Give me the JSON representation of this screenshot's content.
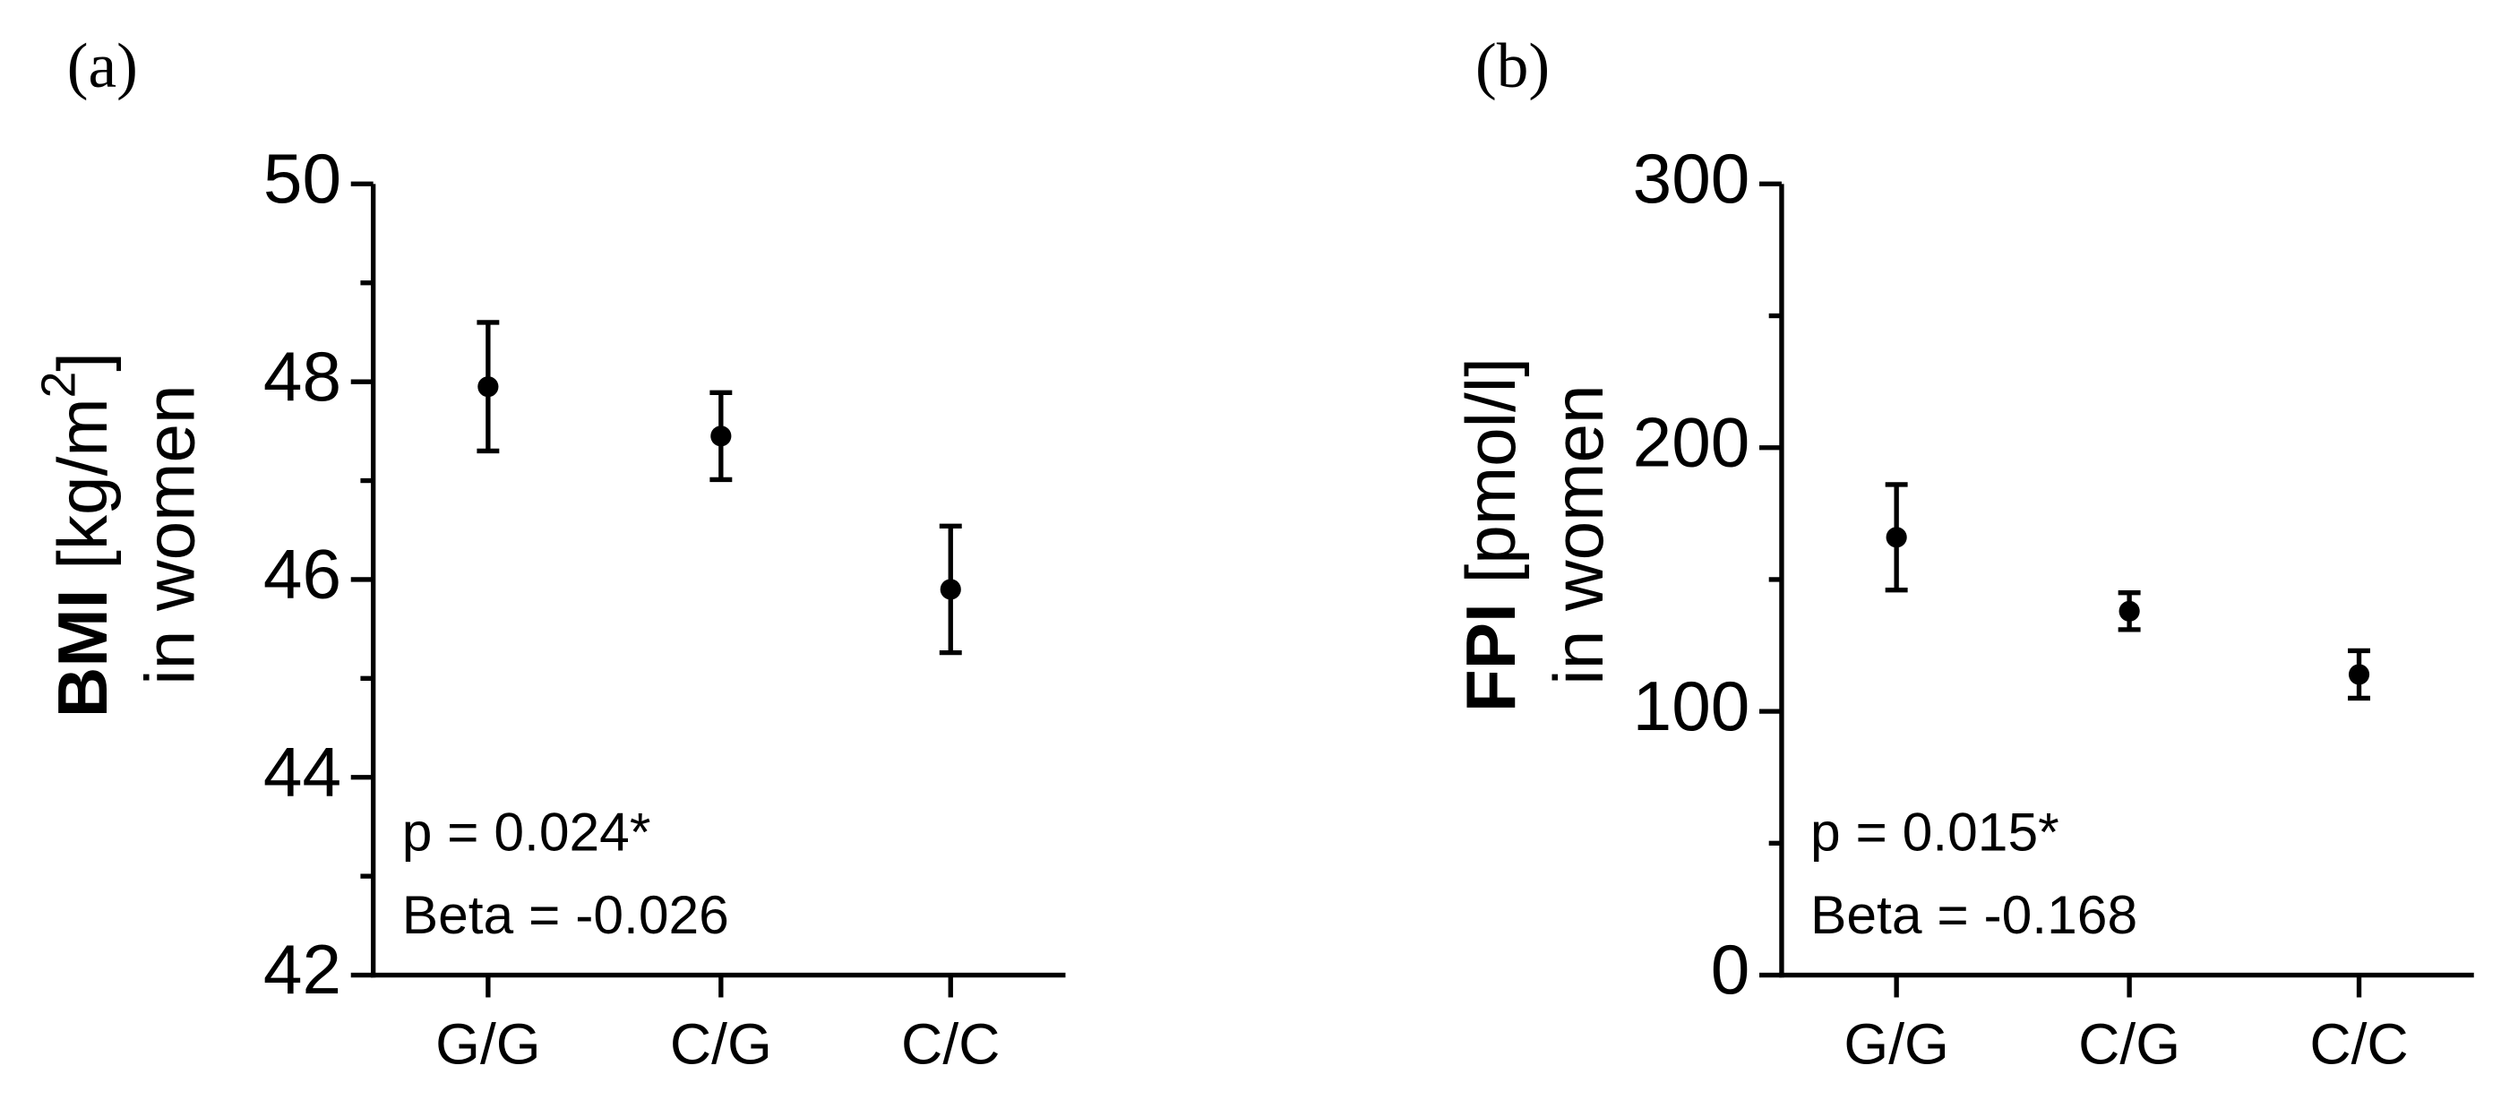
{
  "chart_data": [
    {
      "type": "errorbar",
      "panel": "(a)",
      "ylabel": {
        "bold": "BMI",
        "unit": " [kg/m",
        "sup": "2",
        "close": "]",
        "line2": "in women"
      },
      "categories": [
        "G/G",
        "C/G",
        "C/C"
      ],
      "values": [
        47.95,
        47.45,
        45.9
      ],
      "errors": [
        0.65,
        0.44,
        0.64
      ],
      "color": "#000000",
      "ylim": [
        42,
        50
      ],
      "yticks": [
        42,
        44,
        46,
        48,
        50
      ],
      "yminor": [
        43,
        45,
        47,
        49
      ],
      "annotations": [
        "p = 0.024*",
        "Beta = -0.026"
      ]
    },
    {
      "type": "errorbar",
      "panel": "(b)",
      "ylabel": {
        "bold": "FPI",
        "unit": " [pmol/l]",
        "line2": "in women"
      },
      "categories": [
        "G/G",
        "C/G",
        "C/C"
      ],
      "values": [
        166,
        138,
        114
      ],
      "errors": [
        20,
        7,
        9
      ],
      "color": "#000000",
      "ylim": [
        0,
        300
      ],
      "yticks": [
        0,
        100,
        200,
        300
      ],
      "yminor": [
        50,
        150,
        250
      ],
      "annotations": [
        "p = 0.015*",
        "Beta = -0.168"
      ]
    }
  ]
}
